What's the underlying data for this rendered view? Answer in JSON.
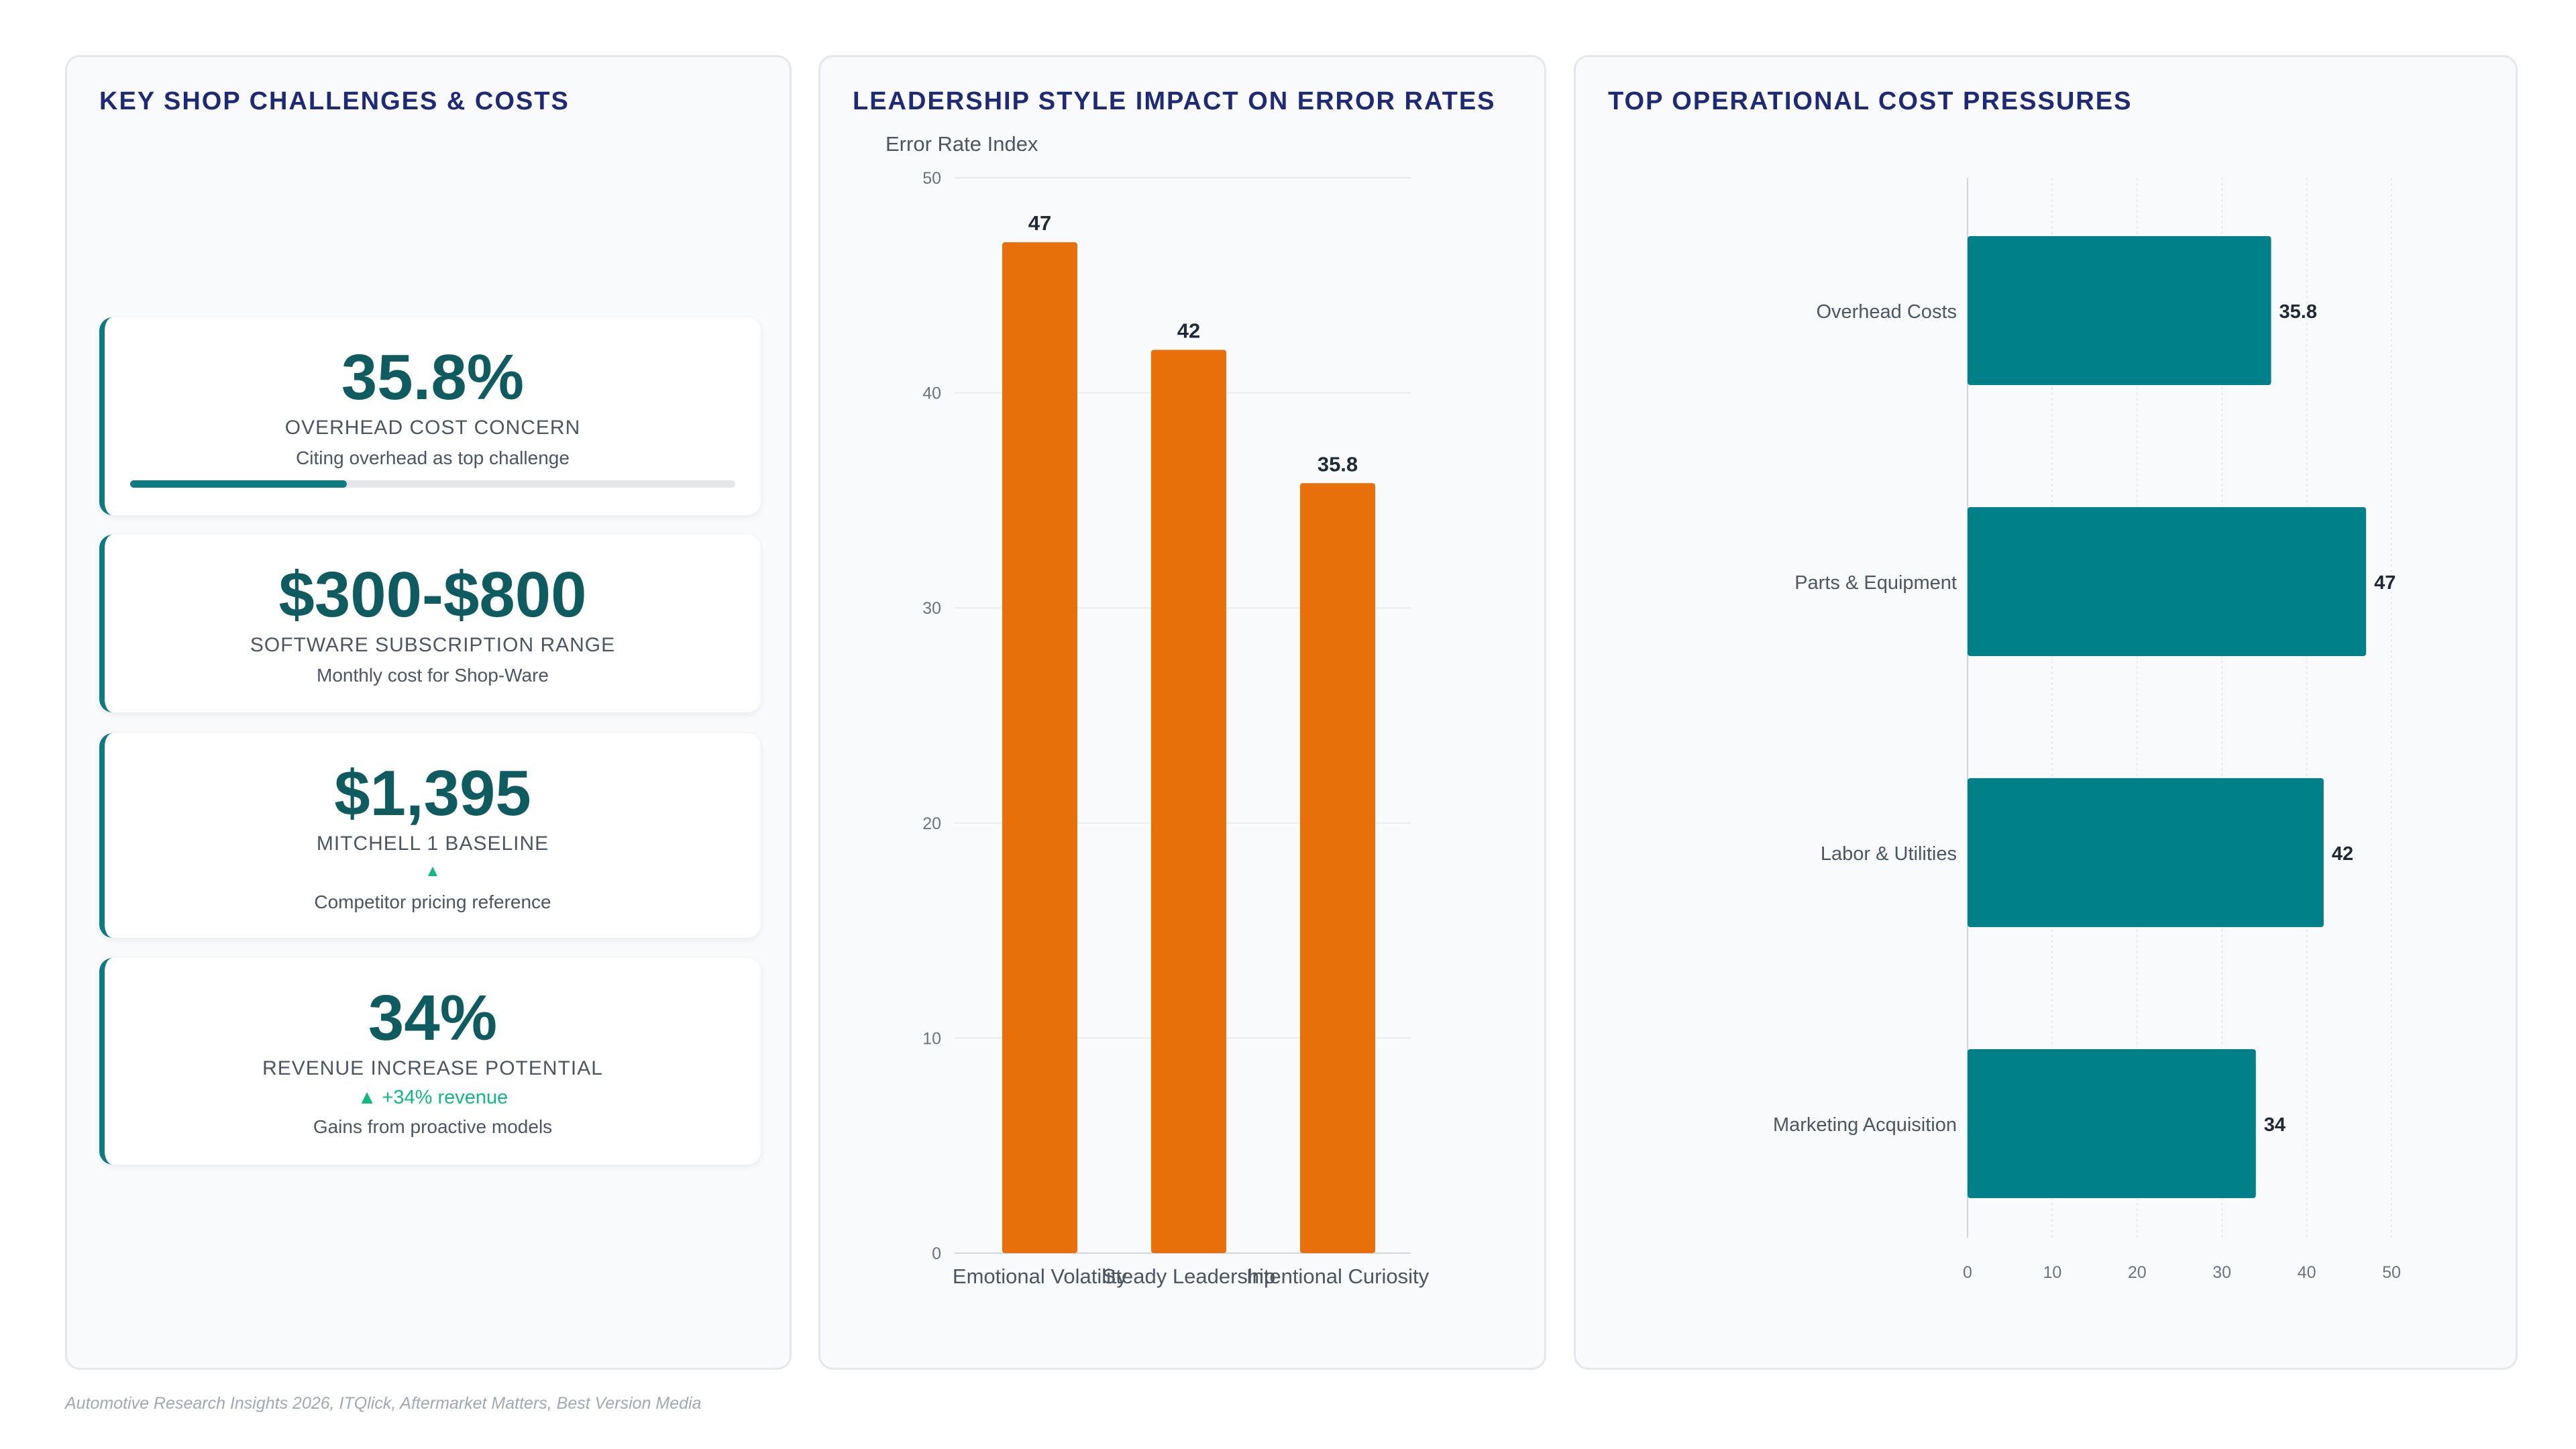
{
  "panels": {
    "kpis": {
      "title": "KEY SHOP CHALLENGES & COSTS",
      "cards": [
        {
          "value": "35.8%",
          "label": "OVERHEAD COST CONCERN",
          "sub": "Citing overhead as top challenge",
          "progress": 0.358
        },
        {
          "value": "$300-$800",
          "label": "SOFTWARE SUBSCRIPTION RANGE",
          "sub": "Monthly cost for Shop-Ware"
        },
        {
          "value": "$1,395",
          "label": "MITCHELL 1 BASELINE",
          "trend": "▲",
          "sub": "Competitor pricing reference"
        },
        {
          "value": "34%",
          "label": "REVENUE INCREASE POTENTIAL",
          "trend": "▲ +34% revenue",
          "sub": "Gains from proactive models"
        }
      ]
    },
    "leadership": {
      "title": "LEADERSHIP STYLE IMPACT ON ERROR RATES"
    },
    "costs": {
      "title": "TOP OPERATIONAL COST PRESSURES"
    }
  },
  "chart_data": [
    {
      "type": "bar",
      "orientation": "vertical",
      "title": "LEADERSHIP STYLE IMPACT ON ERROR RATES",
      "ylabel": "Error Rate Index",
      "categories": [
        "Emotional Volatility",
        "Steady Leadership",
        "Intentional Curiosity"
      ],
      "values": [
        47,
        42,
        35.8
      ],
      "ylim": [
        0,
        50
      ],
      "yticks": [
        0,
        10,
        20,
        30,
        40,
        50
      ],
      "color": "#e8700a",
      "grid": true
    },
    {
      "type": "bar",
      "orientation": "horizontal",
      "title": "TOP OPERATIONAL COST PRESSURES",
      "categories": [
        "Overhead Costs",
        "Parts & Equipment",
        "Labor & Utilities",
        "Marketing Acquisition"
      ],
      "values": [
        35.8,
        47,
        42,
        34
      ],
      "xlim": [
        0,
        50
      ],
      "xticks": [
        0,
        10,
        20,
        30,
        40,
        50
      ],
      "color": "#00818a",
      "grid": true
    }
  ],
  "footer": {
    "source": "Automotive Research Insights 2026, ITQlick, Aftermarket Matters, Best Version Media"
  },
  "colors": {
    "teal": "#00818a",
    "kpi_value": "#0f5c60",
    "orange": "#e8700a",
    "title": "#1e2a78",
    "trend_green": "#10b981"
  }
}
